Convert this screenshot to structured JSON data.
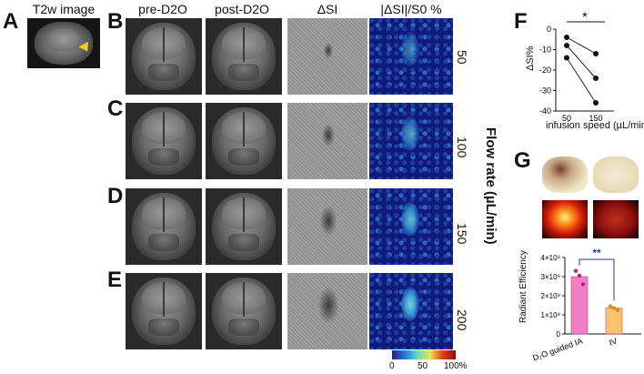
{
  "panels": {
    "A": {
      "label": "A",
      "title": "T2w image"
    },
    "B": {
      "label": "B"
    },
    "C": {
      "label": "C"
    },
    "D": {
      "label": "D"
    },
    "E": {
      "label": "E"
    },
    "F": {
      "label": "F"
    },
    "G": {
      "label": "G"
    }
  },
  "columns": [
    "pre-D2O",
    "post-D2O",
    "ΔSI",
    "|ΔSI|/S0 %"
  ],
  "rows": [
    {
      "rate": "50"
    },
    {
      "rate": "100"
    },
    {
      "rate": "150"
    },
    {
      "rate": "200"
    }
  ],
  "flow_axis_label": "Flow rate (µL/min)",
  "colorbar": {
    "ticks": [
      "0",
      "50",
      "100%"
    ],
    "colors": [
      "#1b1f8a",
      "#1f7be0",
      "#5fe0c8",
      "#f0e040",
      "#e03a1a",
      "#8a1010"
    ]
  },
  "chart_data": [
    {
      "id": "F",
      "type": "line",
      "ylabel": "ΔSI%",
      "xlabel": "infusion speed (µL/min)",
      "categories": [
        "50",
        "150"
      ],
      "ylim": [
        -40,
        0
      ],
      "yticks": [
        0,
        -10,
        -20,
        -30,
        -40
      ],
      "series": [
        {
          "values": [
            -4,
            -12
          ]
        },
        {
          "values": [
            -8,
            -24
          ]
        },
        {
          "values": [
            -14,
            -36
          ]
        }
      ],
      "significance": "*"
    },
    {
      "id": "G",
      "type": "bar",
      "ylabel": "Radiant Efficiency",
      "categories": [
        "D2O guided IA",
        "IV"
      ],
      "values": [
        3.0,
        1.35
      ],
      "points": [
        [
          3.3,
          3.05,
          2.6
        ],
        [
          1.45,
          1.35,
          1.25
        ]
      ],
      "colors": [
        "#f27fc5",
        "#f9c46b"
      ],
      "ylim": [
        0,
        4
      ],
      "yticks": [
        "0",
        "1×10⁹",
        "2×10⁹",
        "3×10⁹",
        "4×10⁹"
      ],
      "significance": "**",
      "xtick_labels": [
        "D₂O guided IA",
        "IV"
      ]
    }
  ]
}
